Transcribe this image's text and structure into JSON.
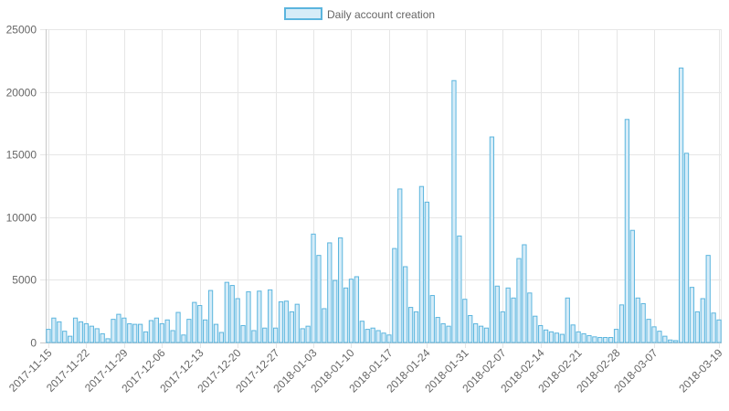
{
  "chart_data": {
    "type": "bar",
    "legend": {
      "label": "Daily account creation",
      "position": "top"
    },
    "colors": {
      "bar_fill": "#d6ecf8",
      "bar_stroke": "#5bb5de",
      "grid": "#e6e6e6",
      "text": "#666666"
    },
    "grid": true,
    "ylim": [
      0,
      25000
    ],
    "y_ticks": [
      "0",
      "5000",
      "10000",
      "15000",
      "20000",
      "25000"
    ],
    "x_tick_labels": [
      "2017-11-15",
      "2017-11-22",
      "2017-11-29",
      "2017-12-06",
      "2017-12-13",
      "2017-12-20",
      "2017-12-27",
      "2018-01-03",
      "2018-01-10",
      "2018-01-17",
      "2018-01-24",
      "2018-01-31",
      "2018-02-07",
      "2018-02-14",
      "2018-02-21",
      "2018-02-28",
      "2018-03-07",
      "2018-03-19"
    ],
    "x_tick_indices": [
      0,
      7,
      14,
      21,
      28,
      35,
      42,
      49,
      56,
      63,
      70,
      77,
      84,
      91,
      98,
      105,
      112,
      124
    ],
    "start_date": "2017-11-15",
    "values": [
      1050,
      1950,
      1650,
      900,
      500,
      1950,
      1650,
      1500,
      1300,
      1100,
      700,
      300,
      1850,
      2250,
      1950,
      1500,
      1450,
      1450,
      850,
      1750,
      1950,
      1500,
      1800,
      950,
      2400,
      600,
      1850,
      3200,
      2950,
      1800,
      4150,
      1450,
      800,
      4800,
      4550,
      3500,
      1350,
      4050,
      950,
      4100,
      1150,
      4200,
      1150,
      3250,
      3300,
      2450,
      3050,
      1100,
      1300,
      8650,
      6950,
      2700,
      7950,
      4950,
      8350,
      4350,
      5050,
      5250,
      1700,
      1050,
      1150,
      950,
      750,
      600,
      7500,
      12250,
      6050,
      2800,
      2450,
      12450,
      11200,
      3750,
      2000,
      1500,
      1300,
      20900,
      8500,
      3450,
      2150,
      1500,
      1300,
      1150,
      16400,
      4500,
      2450,
      4350,
      3550,
      6700,
      7800,
      3950,
      2100,
      1350,
      1000,
      850,
      750,
      650,
      3550,
      1400,
      850,
      700,
      550,
      450,
      400,
      400,
      400,
      1050,
      3000,
      17800,
      8950,
      3550,
      3100,
      1850,
      1250,
      900,
      500,
      200,
      150,
      21900,
      15100,
      4400,
      2450,
      3500,
      6950,
      2350,
      1800
    ]
  }
}
